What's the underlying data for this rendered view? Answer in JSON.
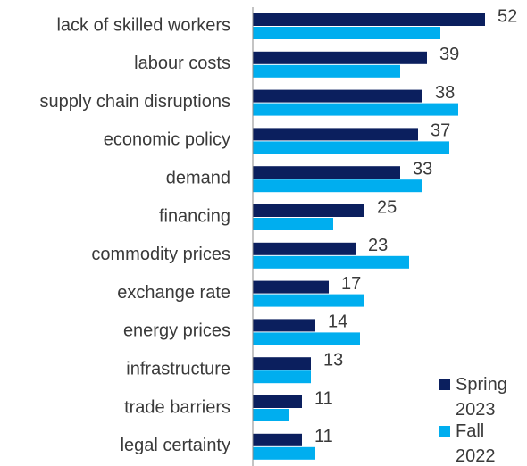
{
  "chart_data": {
    "type": "bar",
    "orientation": "horizontal",
    "categories": [
      "lack of skilled workers",
      "labour costs",
      "supply chain disruptions",
      "economic policy",
      "demand",
      "financing",
      "commodity prices",
      "exchange rate",
      "energy prices",
      "infrastructure",
      "trade barriers",
      "legal certainty"
    ],
    "series": [
      {
        "name": "Spring 2023",
        "color": "#0b1f5e",
        "values": [
          52,
          39,
          38,
          37,
          33,
          25,
          23,
          17,
          14,
          13,
          11,
          11
        ],
        "labeled": true
      },
      {
        "name": "Fall 2022",
        "color": "#00aeef",
        "values": [
          42,
          33,
          46,
          44,
          38,
          18,
          35,
          25,
          24,
          13,
          8,
          14
        ],
        "labeled": false
      }
    ],
    "xlim": [
      0,
      60
    ],
    "legend": "lower right"
  }
}
